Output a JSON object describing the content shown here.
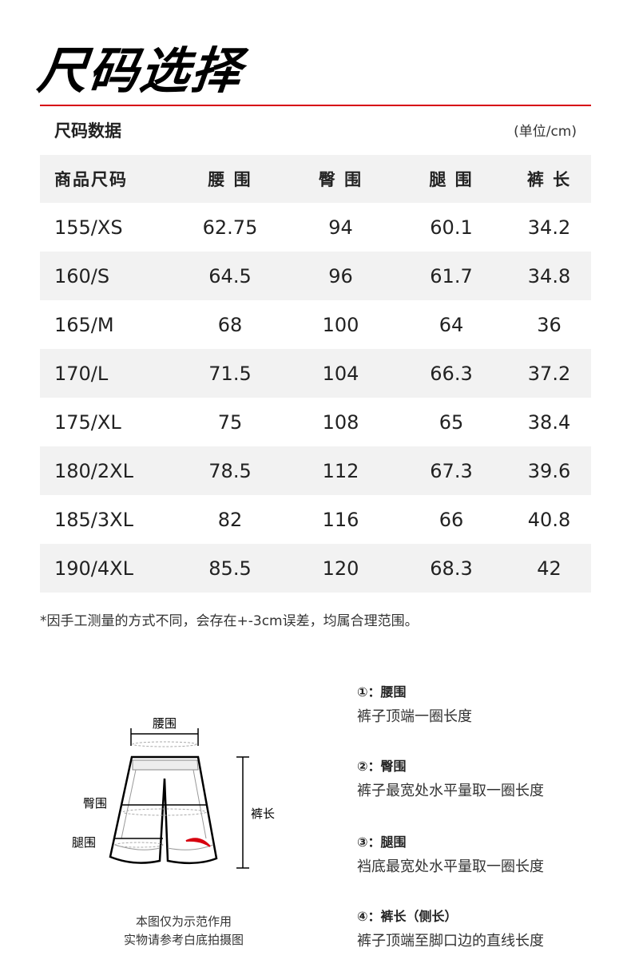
{
  "title": "尺码选择",
  "subtitle": "尺码数据",
  "unit": "(单位/cm)",
  "table": {
    "headers": [
      "商品尺码",
      "腰 围",
      "臀 围",
      "腿 围",
      "裤 长"
    ],
    "rows": [
      [
        "155/XS",
        "62.75",
        "94",
        "60.1",
        "34.2"
      ],
      [
        "160/S",
        "64.5",
        "96",
        "61.7",
        "34.8"
      ],
      [
        "165/M",
        "68",
        "100",
        "64",
        "36"
      ],
      [
        "170/L",
        "71.5",
        "104",
        "66.3",
        "37.2"
      ],
      [
        "175/XL",
        "75",
        "108",
        "65",
        "38.4"
      ],
      [
        "180/2XL",
        "78.5",
        "112",
        "67.3",
        "39.6"
      ],
      [
        "185/3XL",
        "82",
        "116",
        "66",
        "40.8"
      ],
      [
        "190/4XL",
        "85.5",
        "120",
        "68.3",
        "42"
      ]
    ]
  },
  "note": "*因手工测量的方式不同，会存在+-3cm误差，均属合理范围。",
  "diagram": {
    "labels": {
      "waist": "腰围",
      "hip": "臀围",
      "thigh": "腿围",
      "length": "裤长"
    },
    "caption_line1": "本图仅为示范作用",
    "caption_line2": "实物请参考白底拍摄图",
    "logo_color": "#d7000f"
  },
  "definitions": [
    {
      "heading": "①：腰围",
      "desc": "裤子顶端一圈长度"
    },
    {
      "heading": "②：臀围",
      "desc": "裤子最宽处水平量取一圈长度"
    },
    {
      "heading": "③：腿围",
      "desc": "裆底最宽处水平量取一圈长度"
    },
    {
      "heading": "④：裤长（侧长）",
      "desc": "裤子顶端至脚口边的直线长度"
    }
  ],
  "colors": {
    "accent": "#d7000f",
    "row_alt": "#f2f2f2"
  }
}
